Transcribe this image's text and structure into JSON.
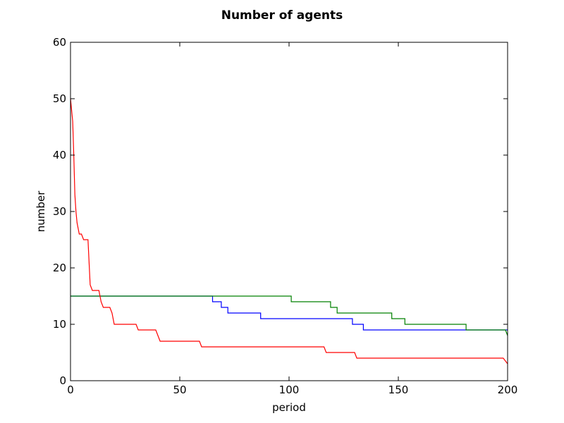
{
  "chart_data": {
    "type": "line",
    "title": "Number of agents",
    "xlabel": "period",
    "ylabel": "number",
    "xlim": [
      0,
      200
    ],
    "ylim": [
      0,
      60
    ],
    "xticks": [
      "0",
      "50",
      "100",
      "150",
      "200"
    ],
    "yticks": [
      "0",
      "10",
      "20",
      "30",
      "40",
      "50",
      "60"
    ],
    "grid": false,
    "legend": "none",
    "series": [
      {
        "color": "#0000ff",
        "style": "step",
        "points": [
          [
            0,
            15
          ],
          [
            65,
            15
          ],
          [
            65,
            14
          ],
          [
            69,
            14
          ],
          [
            69,
            13
          ],
          [
            72,
            13
          ],
          [
            72,
            12
          ],
          [
            87,
            12
          ],
          [
            87,
            11
          ],
          [
            129,
            11
          ],
          [
            129,
            10
          ],
          [
            134,
            10
          ],
          [
            134,
            9
          ],
          [
            200,
            9
          ],
          [
            200,
            9
          ]
        ]
      },
      {
        "color": "#008000",
        "style": "step",
        "points": [
          [
            0,
            15
          ],
          [
            101,
            15
          ],
          [
            101,
            14
          ],
          [
            119,
            14
          ],
          [
            119,
            13
          ],
          [
            122,
            13
          ],
          [
            122,
            12
          ],
          [
            147,
            12
          ],
          [
            147,
            11
          ],
          [
            153,
            11
          ],
          [
            153,
            10
          ],
          [
            181,
            10
          ],
          [
            181,
            9
          ],
          [
            199,
            9
          ],
          [
            200,
            8
          ]
        ]
      },
      {
        "color": "#ff0000",
        "style": "line",
        "points": [
          [
            0,
            50
          ],
          [
            0.5,
            48
          ],
          [
            1,
            46
          ],
          [
            1.5,
            40
          ],
          [
            2,
            33
          ],
          [
            2.5,
            30
          ],
          [
            3,
            28
          ],
          [
            4,
            26
          ],
          [
            5,
            26
          ],
          [
            6,
            25
          ],
          [
            8,
            25
          ],
          [
            9,
            17
          ],
          [
            10,
            16
          ],
          [
            13,
            16
          ],
          [
            14,
            14
          ],
          [
            15,
            13
          ],
          [
            18,
            13
          ],
          [
            19,
            12
          ],
          [
            20,
            10
          ],
          [
            30,
            10
          ],
          [
            31,
            9
          ],
          [
            39,
            9
          ],
          [
            41,
            7
          ],
          [
            59,
            7
          ],
          [
            60,
            6
          ],
          [
            116,
            6
          ],
          [
            117,
            5
          ],
          [
            130,
            5
          ],
          [
            131,
            4
          ],
          [
            198,
            4
          ],
          [
            200,
            3
          ]
        ]
      }
    ]
  }
}
